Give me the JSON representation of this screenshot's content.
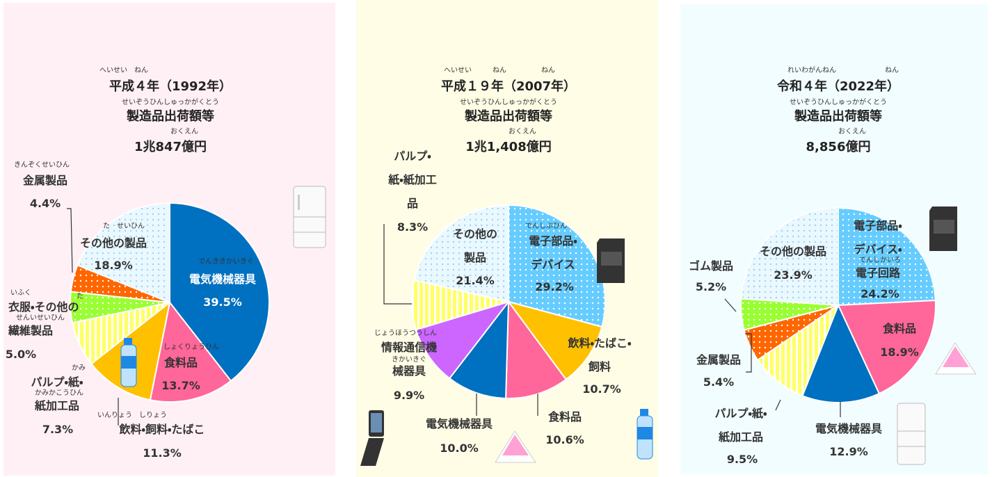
{
  "chart_data": [
    {
      "type": "pie",
      "title": [
        "平成４年（1992年）",
        "製造品出荷額等",
        "1兆847億円"
      ],
      "title_ruby": [
        "へいせい　ねん",
        "せいぞうひんしゅっかがくとう",
        "おくえん"
      ],
      "categories": [
        "電気機械器具",
        "食料品",
        "飲料・飼料・たばこ",
        "パルプ・紙・\n紙加工品",
        "衣服・その他の\n繊維製品",
        "金属製品",
        "その他の製品"
      ],
      "category_ruby": [
        "でんききかいきぐ",
        "しょくりょうひん",
        "いんりょう　しりょう",
        [
          "かみ",
          "かみかこうひん"
        ],
        [
          "いふく",
          "た",
          "せんいせいひん"
        ],
        "きんぞくせいひん",
        "た　せいひん"
      ],
      "values": [
        39.5,
        13.7,
        11.3,
        7.3,
        5.0,
        4.4,
        18.9
      ],
      "value_labels": [
        "39.5%",
        "13.7%",
        "11.3%",
        "7.3%",
        "5.0%",
        "4.4%",
        "18.9%"
      ],
      "colors": [
        "#0070c0",
        "#ff6699",
        "#ffc000",
        "#ffff66",
        "#99ff33",
        "#ff6600",
        "#eaf8ff"
      ],
      "patterns": [
        null,
        null,
        null,
        "stripes",
        "dots",
        "dots",
        "dots"
      ]
    },
    {
      "type": "pie",
      "title": [
        "平成１９年（2007年）",
        "製造品出荷額等",
        "1兆1,408億円"
      ],
      "title_ruby": [
        "へいせい　　　ねん　　　　　ねん",
        "せいぞうひんしゅっかがくとう",
        "おくえん"
      ],
      "categories": [
        "電子部品・\nデバイス",
        "飲料・たばこ・\n飼料",
        "食料品",
        "電気機械器具",
        "情報通信機\n械器具",
        "パルプ・\n紙・紙加工\n品",
        "その他の\n製品"
      ],
      "category_ruby": [
        "でんしぶひん",
        null,
        null,
        null,
        [
          "じょうほうつうしん",
          "きかいきぐ"
        ],
        null,
        null
      ],
      "values": [
        29.2,
        10.7,
        10.6,
        10.0,
        9.9,
        8.3,
        21.4
      ],
      "value_labels": [
        "29.2%",
        "10.7%",
        "10.6%",
        "10.0%",
        "9.9%",
        "8.3%",
        "21.4%"
      ],
      "colors": [
        "#66ccff",
        "#ffc000",
        "#ff6699",
        "#0070c0",
        "#cc66ff",
        "#ffff66",
        "#eaf8ff"
      ],
      "patterns": [
        "dots",
        null,
        null,
        null,
        null,
        "stripes",
        "dots"
      ]
    },
    {
      "type": "pie",
      "title": [
        "令和４年（2022年）",
        "製造品出荷額等",
        "8,856億円"
      ],
      "title_ruby": [
        "れいわがんねん　　　　　　　ねん",
        "せいぞうひんしゅっかがくとう",
        "おくえん"
      ],
      "categories": [
        "電子部品・\nデバイス・\n電子回路",
        "食料品",
        "電気機械器具",
        "パルプ・紙・\n紙加工品",
        "金属製品",
        "ゴム製品",
        "その他の製品"
      ],
      "category_ruby": [
        "でんしかいろ",
        null,
        null,
        null,
        null,
        null,
        null
      ],
      "values": [
        24.2,
        18.9,
        12.9,
        9.5,
        5.4,
        5.2,
        23.9
      ],
      "value_labels": [
        "24.2%",
        "18.9%",
        "12.9%",
        "9.5%",
        "5.4%",
        "5.2%",
        "23.9%"
      ],
      "colors": [
        "#66ccff",
        "#ff6699",
        "#0070c0",
        "#ffff66",
        "#ff6600",
        "#99ff33",
        "#eaf8ff"
      ],
      "patterns": [
        "dots",
        null,
        null,
        "stripes",
        "dots",
        "dots",
        "dots"
      ]
    }
  ]
}
